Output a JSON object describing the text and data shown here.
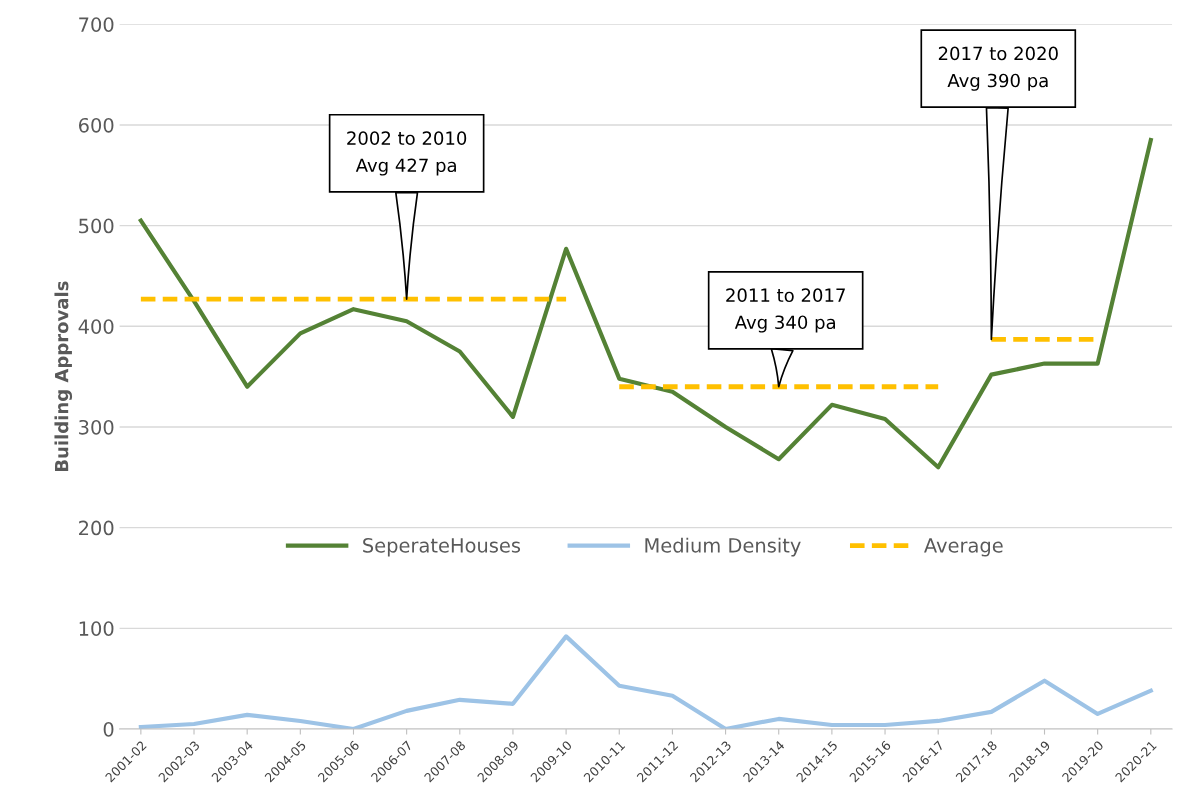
{
  "chart_data": {
    "type": "line",
    "ylabel": "Building Approvals",
    "categories": [
      "2001-02",
      "2002-03",
      "2003-04",
      "2004-05",
      "2005-06",
      "2006-07",
      "2007-08",
      "2008-09",
      "2009-10",
      "2010-11",
      "2011-12",
      "2012-13",
      "2013-14",
      "2014-15",
      "2015-16",
      "2016-17",
      "2017-18",
      "2018-19",
      "2019-20",
      "2020-21"
    ],
    "series": [
      {
        "name": "SeperateHouses",
        "color": "#548235",
        "values": [
          505,
          425,
          340,
          393,
          417,
          405,
          375,
          310,
          477,
          348,
          335,
          300,
          268,
          322,
          308,
          260,
          352,
          363,
          363,
          585
        ]
      },
      {
        "name": "Medium Density",
        "color": "#9dc3e6",
        "values": [
          2,
          5,
          14,
          8,
          0,
          18,
          29,
          25,
          92,
          43,
          33,
          0,
          10,
          4,
          4,
          8,
          17,
          48,
          15,
          38
        ]
      },
      {
        "name": "Average",
        "color": "#ffc000",
        "line_style": "dashed",
        "values": [
          427,
          427,
          427,
          427,
          427,
          427,
          427,
          427,
          427,
          null,
          null,
          null,
          null,
          null,
          null,
          null,
          null,
          null,
          null,
          null
        ]
      },
      {
        "color": "#ffc000",
        "line_style": "dashed",
        "values": [
          null,
          null,
          null,
          null,
          null,
          null,
          null,
          null,
          null,
          340,
          340,
          340,
          340,
          340,
          340,
          340,
          null,
          null,
          null,
          null
        ]
      },
      {
        "color": "#ffc000",
        "line_style": "dashed",
        "values": [
          null,
          null,
          null,
          null,
          null,
          null,
          null,
          null,
          null,
          null,
          null,
          null,
          null,
          null,
          null,
          null,
          387,
          387,
          387,
          null
        ]
      }
    ],
    "ylim": [
      0,
      700
    ],
    "yticks": [
      0,
      100,
      200,
      300,
      400,
      500,
      600,
      700
    ],
    "grid": "y",
    "legend": "bottom",
    "marker": "none",
    "line_style": "solid",
    "annotations": [
      {
        "text": "2002 to 2010\nAvg 427 pa",
        "x": "2006-07",
        "y": 427
      },
      {
        "text": "2011 to 2017\nAvg 340 pa",
        "x": "2013-14",
        "y": 340
      },
      {
        "text": "2017 to 2020\nAvg 390 pa",
        "x": "2017-18",
        "y": 387
      }
    ]
  }
}
